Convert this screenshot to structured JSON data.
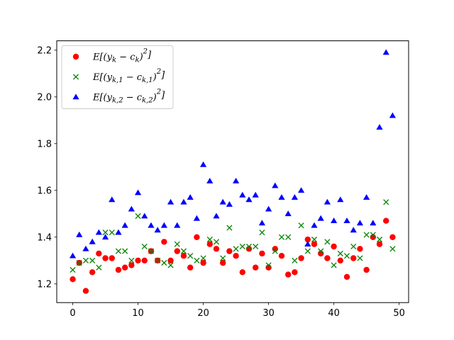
{
  "chart_data": {
    "type": "scatter",
    "x": [
      0,
      1,
      2,
      3,
      4,
      5,
      6,
      7,
      8,
      9,
      10,
      11,
      12,
      13,
      14,
      15,
      16,
      17,
      18,
      19,
      20,
      21,
      22,
      23,
      24,
      25,
      26,
      27,
      28,
      29,
      30,
      31,
      32,
      33,
      34,
      35,
      36,
      37,
      38,
      39,
      40,
      41,
      42,
      43,
      44,
      45,
      46,
      47,
      48,
      49
    ],
    "series": [
      {
        "name": "E[(y_k - c_k)^2]",
        "label_html": "E[(y<tspan baseline-shift=\"sub\" font-size=\"10\">k</tspan> − c<tspan baseline-shift=\"sub\" font-size=\"10\">k</tspan>)<tspan baseline-shift=\"super\" font-size=\"10\">2</tspan>]",
        "marker": "circle",
        "color": "#ff0000",
        "values": [
          1.22,
          1.29,
          1.17,
          1.25,
          1.33,
          1.31,
          1.31,
          1.26,
          1.27,
          1.28,
          1.3,
          1.3,
          1.34,
          1.3,
          1.38,
          1.3,
          1.34,
          1.32,
          1.27,
          1.4,
          1.29,
          1.37,
          1.35,
          1.29,
          1.34,
          1.32,
          1.25,
          1.35,
          1.27,
          1.33,
          1.27,
          1.35,
          1.32,
          1.24,
          1.25,
          1.31,
          1.39,
          1.37,
          1.33,
          1.31,
          1.36,
          1.3,
          1.23,
          1.31,
          1.35,
          1.26,
          1.4,
          1.37,
          1.47,
          1.4
        ]
      },
      {
        "name": "E[(y_{k,1} - c_{k,1})^2]",
        "marker": "x",
        "color": "#008000",
        "values": [
          1.26,
          1.29,
          1.3,
          1.3,
          1.27,
          1.42,
          1.42,
          1.34,
          1.34,
          1.3,
          1.49,
          1.36,
          1.34,
          1.3,
          1.29,
          1.28,
          1.37,
          1.34,
          1.32,
          1.3,
          1.31,
          1.39,
          1.38,
          1.31,
          1.44,
          1.35,
          1.36,
          1.36,
          1.36,
          1.42,
          1.28,
          1.34,
          1.4,
          1.4,
          1.3,
          1.45,
          1.34,
          1.39,
          1.34,
          1.38,
          1.28,
          1.33,
          1.32,
          1.36,
          1.31,
          1.41,
          1.41,
          1.39,
          1.55,
          1.35
        ]
      },
      {
        "name": "E[(y_{k,2} - c_{k,2})^2]",
        "marker": "triangle",
        "color": "#0000ff",
        "values": [
          1.32,
          1.41,
          1.35,
          1.38,
          1.42,
          1.4,
          1.56,
          1.42,
          1.45,
          1.52,
          1.59,
          1.49,
          1.45,
          1.43,
          1.45,
          1.55,
          1.45,
          1.55,
          1.57,
          1.48,
          1.71,
          1.64,
          1.49,
          1.55,
          1.54,
          1.64,
          1.58,
          1.56,
          1.58,
          1.46,
          1.52,
          1.62,
          1.57,
          1.5,
          1.57,
          1.6,
          1.37,
          1.45,
          1.48,
          1.55,
          1.47,
          1.56,
          1.47,
          1.43,
          1.46,
          1.57,
          1.46,
          1.87,
          2.19,
          1.92
        ]
      }
    ],
    "xlim": [
      -2.45,
      51.45
    ],
    "ylim": [
      1.12,
      2.24
    ],
    "xticks": [
      0,
      10,
      20,
      30,
      40,
      50
    ],
    "yticks": [
      1.2,
      1.4,
      1.6,
      1.8,
      2.0,
      2.2
    ],
    "ytick_labels": [
      "1.2",
      "1.4",
      "1.6",
      "1.8",
      "2.0",
      "2.2"
    ],
    "grid": false,
    "legend_position": "top-left",
    "title": "",
    "xlabel": "",
    "ylabel": ""
  }
}
